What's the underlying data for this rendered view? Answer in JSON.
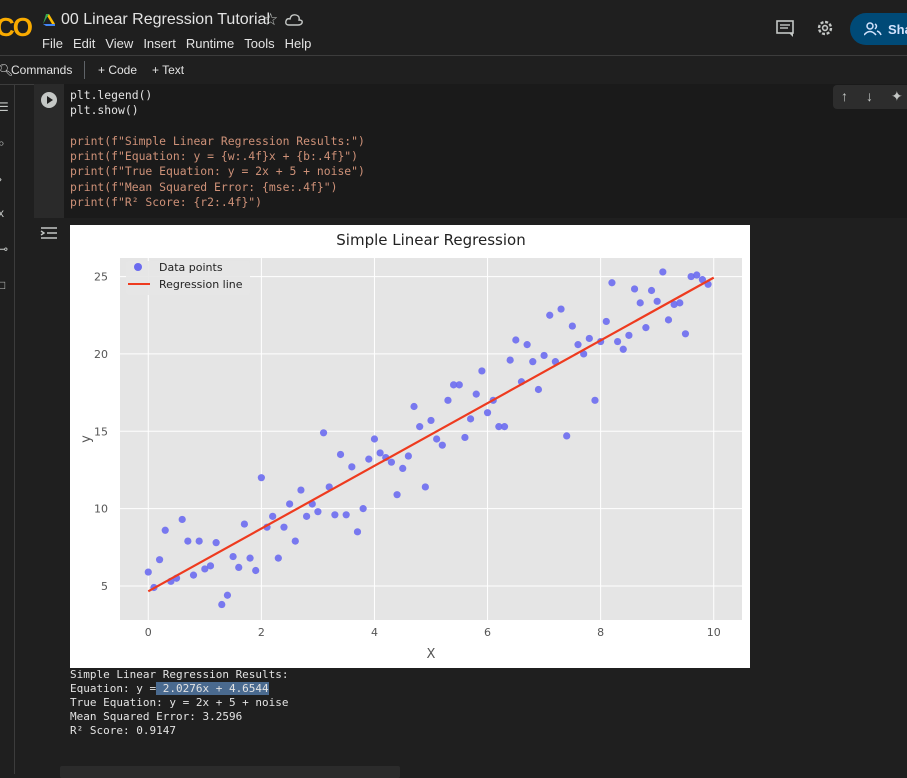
{
  "header": {
    "logo": "CO",
    "doc_title": "00 Linear Regression Tutorial",
    "menus": [
      "File",
      "Edit",
      "View",
      "Insert",
      "Runtime",
      "Tools",
      "Help"
    ],
    "share_label": "Sha"
  },
  "toolbar": {
    "commands_label": "Commands",
    "code_label": "+ Code",
    "text_label": "+ Text"
  },
  "code_cell": {
    "lines": [
      "plt.legend()",
      "plt.show()",
      "",
      "print(f\"Simple Linear Regression Results:\")",
      "print(f\"Equation: y = {w:.4f}x + {b:.4f}\")",
      "print(f\"True Equation: y = 2x + 5 + noise\")",
      "print(f\"Mean Squared Error: {mse:.4f}\")",
      "print(f\"R² Score: {r2:.4f}\")"
    ]
  },
  "output": {
    "line1": "Simple Linear Regression Results:",
    "line2_prefix": "Equation: y =",
    "line2_highlight": " 2.0276x + 4.6544",
    "line3": "True Equation: y = 2x + 5 + noise",
    "line4": "Mean Squared Error: 3.2596",
    "line5": "R² Score: 0.9147"
  },
  "chart_data": {
    "type": "scatter",
    "title": "Simple Linear Regression",
    "xlabel": "X",
    "ylabel": "y",
    "xlim": [
      -0.5,
      10.5
    ],
    "ylim": [
      2.8,
      26.2
    ],
    "xticks": [
      0,
      2,
      4,
      6,
      8,
      10
    ],
    "yticks": [
      5,
      10,
      15,
      20,
      25
    ],
    "grid": true,
    "legend_position": "top-left",
    "series": [
      {
        "name": "Data points",
        "color": "#6b6bef",
        "points": [
          [
            0.0,
            5.9
          ],
          [
            0.1,
            4.9
          ],
          [
            0.2,
            6.7
          ],
          [
            0.3,
            8.6
          ],
          [
            0.4,
            5.3
          ],
          [
            0.5,
            5.5
          ],
          [
            0.6,
            9.3
          ],
          [
            0.7,
            7.9
          ],
          [
            0.8,
            5.7
          ],
          [
            0.9,
            7.9
          ],
          [
            1.0,
            6.1
          ],
          [
            1.1,
            6.3
          ],
          [
            1.2,
            7.8
          ],
          [
            1.3,
            3.8
          ],
          [
            1.4,
            4.4
          ],
          [
            1.5,
            6.9
          ],
          [
            1.6,
            6.2
          ],
          [
            1.7,
            9.0
          ],
          [
            1.8,
            6.8
          ],
          [
            1.9,
            6.0
          ],
          [
            2.0,
            12.0
          ],
          [
            2.1,
            8.8
          ],
          [
            2.2,
            9.5
          ],
          [
            2.3,
            6.8
          ],
          [
            2.4,
            8.8
          ],
          [
            2.5,
            10.3
          ],
          [
            2.6,
            7.9
          ],
          [
            2.7,
            11.2
          ],
          [
            2.8,
            9.5
          ],
          [
            2.9,
            10.3
          ],
          [
            3.0,
            9.8
          ],
          [
            3.1,
            14.9
          ],
          [
            3.2,
            11.4
          ],
          [
            3.3,
            9.6
          ],
          [
            3.4,
            13.5
          ],
          [
            3.5,
            9.6
          ],
          [
            3.6,
            12.7
          ],
          [
            3.7,
            8.5
          ],
          [
            3.8,
            10.0
          ],
          [
            3.9,
            13.2
          ],
          [
            4.0,
            14.5
          ],
          [
            4.1,
            13.6
          ],
          [
            4.2,
            13.3
          ],
          [
            4.3,
            13.0
          ],
          [
            4.4,
            10.9
          ],
          [
            4.5,
            12.6
          ],
          [
            4.6,
            13.4
          ],
          [
            4.7,
            16.6
          ],
          [
            4.8,
            15.3
          ],
          [
            4.9,
            11.4
          ],
          [
            5.0,
            15.7
          ],
          [
            5.1,
            14.5
          ],
          [
            5.2,
            14.1
          ],
          [
            5.3,
            17.0
          ],
          [
            5.4,
            18.0
          ],
          [
            5.5,
            18.0
          ],
          [
            5.6,
            14.6
          ],
          [
            5.7,
            15.8
          ],
          [
            5.8,
            17.4
          ],
          [
            5.9,
            18.9
          ],
          [
            6.0,
            16.2
          ],
          [
            6.1,
            17.0
          ],
          [
            6.2,
            15.3
          ],
          [
            6.3,
            15.3
          ],
          [
            6.4,
            19.6
          ],
          [
            6.5,
            20.9
          ],
          [
            6.6,
            18.2
          ],
          [
            6.7,
            20.6
          ],
          [
            6.8,
            19.5
          ],
          [
            6.9,
            17.7
          ],
          [
            7.0,
            19.9
          ],
          [
            7.1,
            22.5
          ],
          [
            7.2,
            19.5
          ],
          [
            7.3,
            22.9
          ],
          [
            7.4,
            14.7
          ],
          [
            7.5,
            21.8
          ],
          [
            7.6,
            20.6
          ],
          [
            7.7,
            20.0
          ],
          [
            7.8,
            21.0
          ],
          [
            7.9,
            17.0
          ],
          [
            8.0,
            20.8
          ],
          [
            8.1,
            22.1
          ],
          [
            8.2,
            24.6
          ],
          [
            8.3,
            20.8
          ],
          [
            8.4,
            20.3
          ],
          [
            8.5,
            21.2
          ],
          [
            8.6,
            24.2
          ],
          [
            8.7,
            23.3
          ],
          [
            8.8,
            21.7
          ],
          [
            8.9,
            24.1
          ],
          [
            9.0,
            23.4
          ],
          [
            9.1,
            25.3
          ],
          [
            9.2,
            22.2
          ],
          [
            9.3,
            23.2
          ],
          [
            9.4,
            23.3
          ],
          [
            9.5,
            21.3
          ],
          [
            9.6,
            25.0
          ],
          [
            9.7,
            25.1
          ],
          [
            9.8,
            24.8
          ],
          [
            9.9,
            24.5
          ]
        ]
      },
      {
        "name": "Regression line",
        "color": "#ee3b1f",
        "type": "line",
        "slope": 2.0276,
        "intercept": 4.6544,
        "x_range": [
          0,
          10
        ]
      }
    ]
  }
}
